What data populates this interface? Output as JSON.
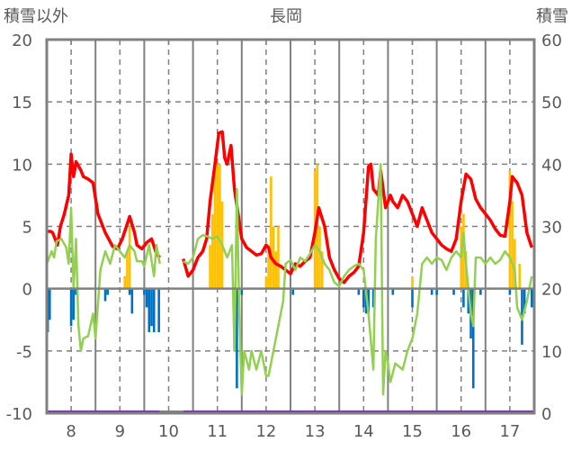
{
  "chart_data": {
    "type": "line",
    "title": "長岡",
    "ylabel_left": "積雪以外",
    "ylabel_right": "積雪",
    "ylim_left": [
      -10,
      20
    ],
    "ylim_right": [
      0,
      60
    ],
    "yticks_left": [
      "20",
      "15",
      "10",
      "5",
      "0",
      "-5",
      "-10"
    ],
    "yticks_right": [
      "60",
      "50",
      "40",
      "30",
      "20",
      "10",
      "0"
    ],
    "xlim": [
      7.5,
      17.5
    ],
    "xticks": [
      "8",
      "9",
      "10",
      "11",
      "12",
      "13",
      "14",
      "15",
      "16",
      "17"
    ],
    "series": [
      {
        "name": "red-line",
        "color": "#ff0000",
        "axis": "left",
        "segments": [
          [
            [
              7.5,
              4.6
            ],
            [
              7.58,
              4.6
            ],
            [
              7.62,
              4.5
            ],
            [
              7.67,
              4.0
            ],
            [
              7.72,
              3.5
            ],
            [
              7.78,
              5.0
            ],
            [
              7.86,
              6
            ],
            [
              7.95,
              7.5
            ],
            [
              8.0,
              10.8
            ],
            [
              8.05,
              9
            ],
            [
              8.1,
              10.2
            ],
            [
              8.2,
              9.5
            ],
            [
              8.25,
              9
            ],
            [
              8.35,
              8.8
            ],
            [
              8.45,
              8.5
            ],
            [
              8.55,
              6
            ],
            [
              8.7,
              4.5
            ],
            [
              8.85,
              3.4
            ],
            [
              8.95,
              3.2
            ],
            [
              9.05,
              4
            ],
            [
              9.15,
              5.2
            ],
            [
              9.2,
              5.8
            ],
            [
              9.3,
              4.5
            ],
            [
              9.35,
              3.5
            ],
            [
              9.45,
              3.2
            ],
            [
              9.55,
              3.7
            ],
            [
              9.65,
              4
            ],
            [
              9.75,
              2.8
            ],
            [
              9.82,
              2.5
            ]
          ],
          [
            [
              10.3,
              2.4
            ],
            [
              10.4,
              1.0
            ],
            [
              10.5,
              1.5
            ],
            [
              10.6,
              2.5
            ],
            [
              10.7,
              3
            ],
            [
              10.78,
              4
            ],
            [
              10.85,
              7
            ],
            [
              10.95,
              10
            ],
            [
              11.03,
              12.5
            ],
            [
              11.1,
              12.6
            ],
            [
              11.15,
              10.5
            ],
            [
              11.2,
              10
            ],
            [
              11.28,
              11.5
            ],
            [
              11.35,
              8
            ],
            [
              11.5,
              4
            ],
            [
              11.6,
              3.3
            ],
            [
              11.7,
              3
            ],
            [
              11.8,
              2.7
            ],
            [
              11.9,
              2.8
            ],
            [
              12.0,
              3.5
            ],
            [
              12.05,
              3.3
            ],
            [
              12.1,
              2.5
            ],
            [
              12.2,
              2
            ],
            [
              12.3,
              1.8
            ],
            [
              12.4,
              1.5
            ],
            [
              12.5,
              1.2
            ],
            [
              12.6,
              2
            ],
            [
              12.7,
              1.8
            ],
            [
              12.8,
              2.2
            ],
            [
              12.9,
              2.5
            ],
            [
              13.0,
              4.5
            ],
            [
              13.08,
              6.5
            ],
            [
              13.2,
              5
            ],
            [
              13.3,
              2.5
            ],
            [
              13.4,
              1.5
            ],
            [
              13.5,
              0.8
            ],
            [
              13.6,
              0.5
            ],
            [
              13.7,
              1.0
            ],
            [
              13.8,
              1.3
            ],
            [
              13.9,
              1.8
            ],
            [
              14.0,
              4.5
            ],
            [
              14.1,
              9.8
            ],
            [
              14.15,
              10
            ],
            [
              14.2,
              8
            ],
            [
              14.3,
              7.5
            ],
            [
              14.35,
              9.5
            ],
            [
              14.45,
              6.5
            ],
            [
              14.55,
              7.5
            ],
            [
              14.6,
              7.0
            ],
            [
              14.7,
              6.5
            ],
            [
              14.8,
              7.5
            ],
            [
              14.9,
              7.0
            ],
            [
              15.0,
              6
            ],
            [
              15.1,
              5
            ],
            [
              15.2,
              6.5
            ],
            [
              15.3,
              5.5
            ],
            [
              15.4,
              4.5
            ],
            [
              15.5,
              4
            ],
            [
              15.6,
              3.5
            ],
            [
              15.7,
              3.2
            ],
            [
              15.8,
              3.0
            ],
            [
              15.9,
              4
            ],
            [
              16.0,
              7.0
            ],
            [
              16.1,
              9.2
            ],
            [
              16.2,
              8.8
            ],
            [
              16.3,
              7.2
            ],
            [
              16.4,
              6.5
            ],
            [
              16.5,
              6
            ],
            [
              16.6,
              5.5
            ],
            [
              16.7,
              4.8
            ],
            [
              16.8,
              4.3
            ],
            [
              16.9,
              4.2
            ],
            [
              17.0,
              7
            ],
            [
              17.05,
              9.0
            ],
            [
              17.15,
              8.5
            ],
            [
              17.25,
              7.5
            ],
            [
              17.35,
              4.5
            ],
            [
              17.45,
              3.3
            ]
          ]
        ]
      },
      {
        "name": "green-line",
        "color": "#92d050",
        "axis": "left",
        "segments": [
          [
            [
              7.5,
              2
            ],
            [
              7.6,
              3
            ],
            [
              7.65,
              2.5
            ],
            [
              7.7,
              3.8
            ],
            [
              7.8,
              4
            ],
            [
              7.9,
              3.3
            ],
            [
              7.95,
              2
            ],
            [
              8.0,
              6.5
            ],
            [
              8.05,
              0
            ],
            [
              8.1,
              4
            ],
            [
              8.15,
              -3
            ],
            [
              8.2,
              -5
            ],
            [
              8.25,
              -4
            ],
            [
              8.35,
              -3.8
            ],
            [
              8.45,
              -2
            ],
            [
              8.5,
              -4
            ],
            [
              8.6,
              1.5
            ],
            [
              8.7,
              3
            ],
            [
              8.8,
              2
            ],
            [
              8.9,
              3.5
            ],
            [
              9.0,
              3
            ],
            [
              9.1,
              2.5
            ],
            [
              9.2,
              3.5
            ],
            [
              9.3,
              3.0
            ],
            [
              9.35,
              2.2
            ],
            [
              9.45,
              2.2
            ],
            [
              9.5,
              1.8
            ],
            [
              9.6,
              3.5
            ],
            [
              9.7,
              1
            ],
            [
              9.75,
              3.5
            ],
            [
              9.82,
              2
            ]
          ],
          [
            [
              10.3,
              2.2
            ],
            [
              10.4,
              2
            ],
            [
              10.5,
              2.5
            ],
            [
              10.6,
              4
            ],
            [
              10.7,
              4.3
            ],
            [
              10.8,
              4.2
            ],
            [
              10.9,
              4.0
            ],
            [
              11.0,
              4.2
            ],
            [
              11.1,
              3.5
            ],
            [
              11.2,
              2.5
            ],
            [
              11.3,
              3.5
            ],
            [
              11.35,
              -5
            ],
            [
              11.4,
              8
            ],
            [
              11.45,
              -2
            ],
            [
              11.5,
              -8.5
            ],
            [
              11.55,
              -5
            ],
            [
              11.65,
              -6.5
            ],
            [
              11.7,
              -5
            ],
            [
              11.8,
              -6.5
            ],
            [
              11.9,
              -5
            ],
            [
              12.0,
              -7
            ],
            [
              12.05,
              -7
            ],
            [
              12.15,
              -5
            ],
            [
              12.25,
              -3
            ],
            [
              12.35,
              -1
            ],
            [
              12.4,
              2
            ],
            [
              12.5,
              2.3
            ],
            [
              12.6,
              1.5
            ],
            [
              12.7,
              2.5
            ],
            [
              12.8,
              2.2
            ],
            [
              12.9,
              2.8
            ],
            [
              13.0,
              3.5
            ],
            [
              13.1,
              3
            ],
            [
              13.2,
              2
            ],
            [
              13.3,
              1.5
            ],
            [
              13.4,
              0.5
            ],
            [
              13.5,
              0.2
            ],
            [
              13.6,
              1
            ],
            [
              13.7,
              1.5
            ],
            [
              13.8,
              1.8
            ],
            [
              13.9,
              2.0
            ],
            [
              14.0,
              1.5
            ],
            [
              14.1,
              -2
            ],
            [
              14.2,
              -6.5
            ],
            [
              14.25,
              4
            ],
            [
              14.35,
              10
            ],
            [
              14.4,
              -8.5
            ],
            [
              14.45,
              -5
            ],
            [
              14.5,
              -6
            ],
            [
              14.55,
              -7.5
            ],
            [
              14.65,
              -6
            ],
            [
              14.8,
              -6.5
            ],
            [
              14.9,
              -5
            ],
            [
              15.0,
              -4
            ],
            [
              15.1,
              -2
            ],
            [
              15.2,
              2
            ],
            [
              15.3,
              2.5
            ],
            [
              15.4,
              2
            ],
            [
              15.5,
              2.5
            ],
            [
              15.6,
              2.3
            ],
            [
              15.7,
              1.5
            ],
            [
              15.8,
              2.5
            ],
            [
              15.9,
              3
            ],
            [
              16.0,
              2.5
            ],
            [
              16.05,
              4.5
            ],
            [
              16.1,
              2
            ],
            [
              16.2,
              -2
            ],
            [
              16.25,
              -3
            ],
            [
              16.3,
              2.5
            ],
            [
              16.4,
              2.5
            ],
            [
              16.5,
              2.0
            ],
            [
              16.6,
              2.5
            ],
            [
              16.7,
              2.0
            ],
            [
              16.8,
              2.3
            ],
            [
              16.9,
              3
            ],
            [
              17.0,
              2.5
            ],
            [
              17.1,
              1.5
            ],
            [
              17.15,
              -1.5
            ],
            [
              17.25,
              -2.5
            ],
            [
              17.35,
              -1
            ],
            [
              17.45,
              1.0
            ]
          ]
        ]
      },
      {
        "name": "snow-depth",
        "color": "#7030a0",
        "axis": "right",
        "segments": [
          [
            [
              7.5,
              0
            ],
            [
              9.82,
              0
            ]
          ],
          [
            [
              10.3,
              0
            ],
            [
              17.5,
              0
            ]
          ]
        ]
      }
    ],
    "bars_positive": {
      "color": "#ffc000",
      "points": [
        [
          9.1,
          1
        ],
        [
          9.15,
          3
        ],
        [
          9.2,
          5
        ],
        [
          10.85,
          3.5
        ],
        [
          10.9,
          6
        ],
        [
          10.95,
          10
        ],
        [
          11.0,
          10
        ],
        [
          11.05,
          10
        ],
        [
          11.1,
          7
        ],
        [
          12.0,
          1
        ],
        [
          12.05,
          3
        ],
        [
          12.1,
          9
        ],
        [
          12.15,
          5
        ],
        [
          12.2,
          3
        ],
        [
          12.25,
          5
        ],
        [
          13.0,
          9.5
        ],
        [
          13.05,
          10
        ],
        [
          13.1,
          5
        ],
        [
          13.15,
          3
        ],
        [
          15.0,
          1
        ],
        [
          16.0,
          5
        ],
        [
          16.05,
          6
        ],
        [
          16.1,
          3
        ],
        [
          17.0,
          9.5
        ],
        [
          17.05,
          7
        ],
        [
          17.1,
          4
        ],
        [
          17.2,
          2
        ]
      ]
    },
    "bars_negative": {
      "color": "#0070c0",
      "points": [
        [
          7.52,
          -3.5
        ],
        [
          7.56,
          -2.5
        ],
        [
          8.0,
          -3
        ],
        [
          8.05,
          -2.5
        ],
        [
          8.1,
          -0.5
        ],
        [
          8.7,
          -1
        ],
        [
          8.75,
          -0.5
        ],
        [
          9.2,
          -0.5
        ],
        [
          9.25,
          -2
        ],
        [
          9.5,
          -0.5
        ],
        [
          9.55,
          -1.5
        ],
        [
          9.6,
          -3.5
        ],
        [
          9.65,
          -3
        ],
        [
          9.7,
          -3.5
        ],
        [
          9.8,
          -3.5
        ],
        [
          11.35,
          -5
        ],
        [
          11.4,
          -8
        ],
        [
          11.5,
          -0.5
        ],
        [
          12.55,
          -0.5
        ],
        [
          13.9,
          -0.5
        ],
        [
          14.0,
          -1.5
        ],
        [
          14.05,
          -2
        ],
        [
          14.1,
          -2
        ],
        [
          14.2,
          -1.5
        ],
        [
          14.6,
          -0.5
        ],
        [
          15.0,
          -1.5
        ],
        [
          15.4,
          -0.5
        ],
        [
          15.5,
          -0.5
        ],
        [
          15.85,
          -0.5
        ],
        [
          16.05,
          -1.5
        ],
        [
          16.15,
          -2
        ],
        [
          16.2,
          -4
        ],
        [
          16.25,
          -8
        ],
        [
          16.4,
          -0.5
        ],
        [
          17.0,
          -0.5
        ],
        [
          17.25,
          -4.5
        ],
        [
          17.3,
          -2
        ],
        [
          17.45,
          -1.5
        ]
      ]
    },
    "grid": true
  }
}
